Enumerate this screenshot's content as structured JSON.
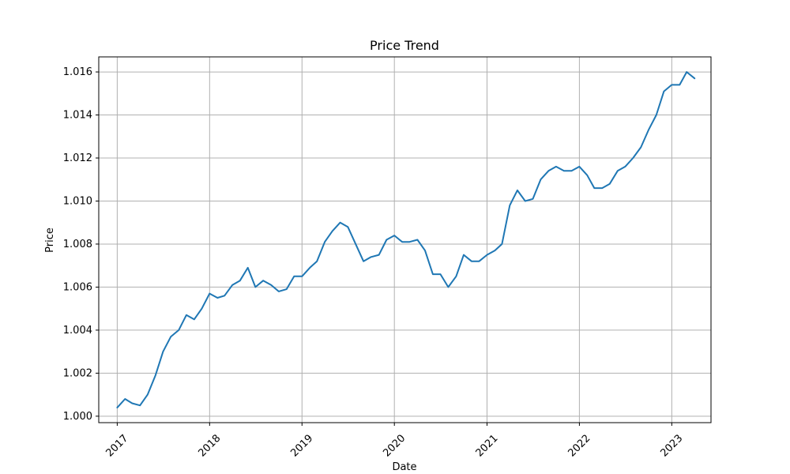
{
  "chart_data": {
    "type": "line",
    "title": "Price Trend",
    "xlabel": "Date",
    "ylabel": "Price",
    "x_tick_labels": [
      "2017",
      "2018",
      "2019",
      "2020",
      "2021",
      "2022",
      "2023"
    ],
    "y_tick_labels": [
      "1.000",
      "1.002",
      "1.004",
      "1.006",
      "1.008",
      "1.010",
      "1.012",
      "1.014",
      "1.016"
    ],
    "y_ticks": [
      1.0,
      1.002,
      1.004,
      1.006,
      1.008,
      1.01,
      1.012,
      1.014,
      1.016
    ],
    "xlim": [
      "2016-10-20",
      "2023-06-05"
    ],
    "ylim": [
      0.9997,
      1.0167
    ],
    "grid": true,
    "series": [
      {
        "color": "#1f77b4",
        "x": [
          "2017-01-01",
          "2017-02-01",
          "2017-03-01",
          "2017-04-01",
          "2017-05-01",
          "2017-06-01",
          "2017-07-01",
          "2017-08-01",
          "2017-09-01",
          "2017-10-01",
          "2017-11-01",
          "2017-12-01",
          "2018-01-01",
          "2018-02-01",
          "2018-03-01",
          "2018-04-01",
          "2018-05-01",
          "2018-06-01",
          "2018-07-01",
          "2018-08-01",
          "2018-09-01",
          "2018-10-01",
          "2018-11-01",
          "2018-12-01",
          "2019-01-01",
          "2019-02-01",
          "2019-03-01",
          "2019-04-01",
          "2019-05-01",
          "2019-06-01",
          "2019-07-01",
          "2019-08-01",
          "2019-09-01",
          "2019-10-01",
          "2019-11-01",
          "2019-12-01",
          "2020-01-01",
          "2020-02-01",
          "2020-03-01",
          "2020-04-01",
          "2020-05-01",
          "2020-06-01",
          "2020-07-01",
          "2020-08-01",
          "2020-09-01",
          "2020-10-01",
          "2020-11-01",
          "2020-12-01",
          "2021-01-01",
          "2021-02-01",
          "2021-03-01",
          "2021-04-01",
          "2021-05-01",
          "2021-06-01",
          "2021-07-01",
          "2021-08-01",
          "2021-09-01",
          "2021-10-01",
          "2021-11-01",
          "2021-12-01",
          "2022-01-01",
          "2022-02-01",
          "2022-03-01",
          "2022-04-01",
          "2022-05-01",
          "2022-06-01",
          "2022-07-01",
          "2022-08-01",
          "2022-09-01",
          "2022-10-01",
          "2022-11-01",
          "2022-12-01",
          "2023-01-01",
          "2023-02-01",
          "2023-03-01",
          "2023-04-01"
        ],
        "values": [
          1.0004,
          1.0008,
          1.0006,
          1.0005,
          1.001,
          1.0019,
          1.003,
          1.0037,
          1.004,
          1.0047,
          1.0045,
          1.005,
          1.0057,
          1.0055,
          1.0056,
          1.0061,
          1.0063,
          1.0069,
          1.006,
          1.0063,
          1.0061,
          1.0058,
          1.0059,
          1.0065,
          1.0065,
          1.0069,
          1.0072,
          1.0081,
          1.0086,
          1.009,
          1.0088,
          1.008,
          1.0072,
          1.0074,
          1.0075,
          1.0082,
          1.0084,
          1.0081,
          1.0081,
          1.0082,
          1.0077,
          1.0066,
          1.0066,
          1.006,
          1.0065,
          1.0075,
          1.0072,
          1.0072,
          1.0075,
          1.0077,
          1.008,
          1.0098,
          1.0105,
          1.01,
          1.0101,
          1.011,
          1.0114,
          1.0116,
          1.0114,
          1.0114,
          1.0116,
          1.0112,
          1.0106,
          1.0106,
          1.0108,
          1.0114,
          1.0116,
          1.012,
          1.0125,
          1.0133,
          1.014,
          1.0151,
          1.0154,
          1.0154,
          1.016,
          1.0157
        ]
      }
    ]
  }
}
